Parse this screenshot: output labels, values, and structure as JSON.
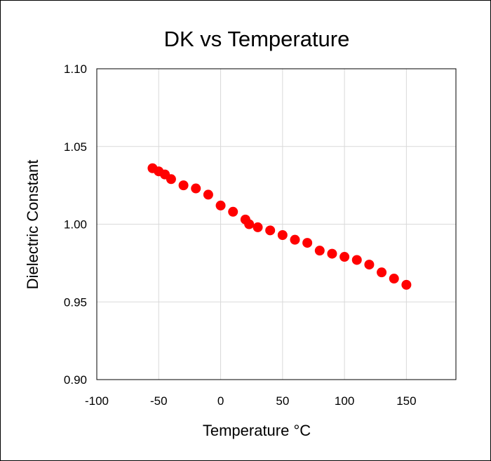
{
  "chart_data": {
    "type": "scatter",
    "title": "DK vs Temperature",
    "xlabel": "Temperature °C",
    "ylabel": "Dielectric Constant",
    "xlim": [
      -100,
      190
    ],
    "ylim": [
      0.9,
      1.1
    ],
    "x_ticks": [
      -100,
      -50,
      0,
      50,
      100,
      150
    ],
    "x_tick_labels": [
      "-100",
      "-50",
      "0",
      "50",
      "100",
      "150"
    ],
    "y_ticks": [
      0.9,
      0.95,
      1.0,
      1.05,
      1.1
    ],
    "y_tick_labels": [
      "0.90",
      "0.95",
      "1.00",
      "1.05",
      "1.10"
    ],
    "grid": true,
    "legend": "none",
    "marker_color": "#ff0000",
    "series": [
      {
        "points": [
          [
            -55,
            1.036
          ],
          [
            -50,
            1.034
          ],
          [
            -45,
            1.032
          ],
          [
            -40,
            1.029
          ],
          [
            -30,
            1.025
          ],
          [
            -20,
            1.023
          ],
          [
            -10,
            1.019
          ],
          [
            0,
            1.012
          ],
          [
            10,
            1.008
          ],
          [
            20,
            1.003
          ],
          [
            23,
            1.0
          ],
          [
            30,
            0.998
          ],
          [
            40,
            0.996
          ],
          [
            50,
            0.993
          ],
          [
            60,
            0.99
          ],
          [
            70,
            0.988
          ],
          [
            80,
            0.983
          ],
          [
            90,
            0.981
          ],
          [
            100,
            0.979
          ],
          [
            110,
            0.977
          ],
          [
            120,
            0.974
          ],
          [
            130,
            0.969
          ],
          [
            140,
            0.965
          ],
          [
            150,
            0.961
          ]
        ]
      }
    ]
  }
}
